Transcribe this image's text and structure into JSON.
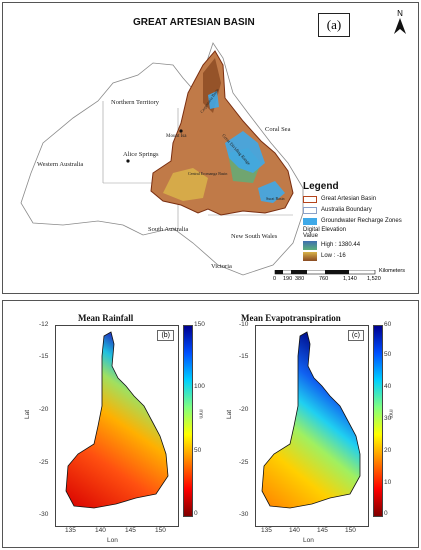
{
  "map": {
    "title": "GREAT ARTESIAN BASIN",
    "panel_tag": "(a)",
    "north_label": "N",
    "places": {
      "northern_territory": "Northern Territory",
      "coral_sea": "Coral Sea",
      "mount_isa": "Mount Isa",
      "alice_springs": "Alice Springs",
      "western_australia": "Western Australia",
      "south_australia": "South Australia",
      "new_south_wales": "New South Wales",
      "victoria": "Victoria",
      "great_dividing_range": "Great Dividing Range",
      "carpentaria_basin": "Carpentaria Basin",
      "central_eromanga_basin": "Central Eromanga Basin",
      "surat_basin": "Surat Basin"
    },
    "legend": {
      "title": "Legend",
      "items": [
        {
          "label": "Great Artesian Basin",
          "color": "#ffffff",
          "border": "#b5441c"
        },
        {
          "label": "Australia Boundary",
          "color": "#ffffff",
          "border": "#8aa0c8"
        },
        {
          "label": "Groundwater Recharge Zones",
          "color": "#3fa9e8",
          "border": "#3fa9e8"
        }
      ],
      "elevation_title": "Digital Elevation",
      "value_label": "Value",
      "high_label": "High : 1380.44",
      "low_label": "Low : -16"
    },
    "scale": {
      "ticks": [
        "0",
        "190",
        "380",
        "760",
        "1,140",
        "1,520"
      ],
      "unit": "Kilometers"
    }
  },
  "plots": [
    {
      "title": "Mean Rainfall",
      "panel_tag": "(b)",
      "xlabel": "Lon",
      "ylabel": "Lat",
      "x_ticks": [
        "135",
        "140",
        "145",
        "150"
      ],
      "y_ticks": [
        "-12",
        "-15",
        "-20",
        "-25",
        "-30"
      ],
      "colorbar_ticks": [
        "150",
        "100",
        "50",
        "0"
      ],
      "colorbar_unit": "mm",
      "colormap": "jet"
    },
    {
      "title": "Mean Evapotranspiration",
      "panel_tag": "(c)",
      "xlabel": "Lon",
      "ylabel": "Lat",
      "x_ticks": [
        "135",
        "140",
        "145",
        "150"
      ],
      "y_ticks": [
        "-10",
        "-15",
        "-20",
        "-25",
        "-30"
      ],
      "colorbar_ticks": [
        "60",
        "50",
        "40",
        "30",
        "20",
        "10",
        "0"
      ],
      "colorbar_unit": "mm",
      "colormap": "jet"
    }
  ],
  "colors": {
    "basin_brown": "#c07a48",
    "basin_outline": "#7a2e10",
    "recharge_blue": "#3fa9e8",
    "boundary_gray": "#9a9a9a"
  }
}
